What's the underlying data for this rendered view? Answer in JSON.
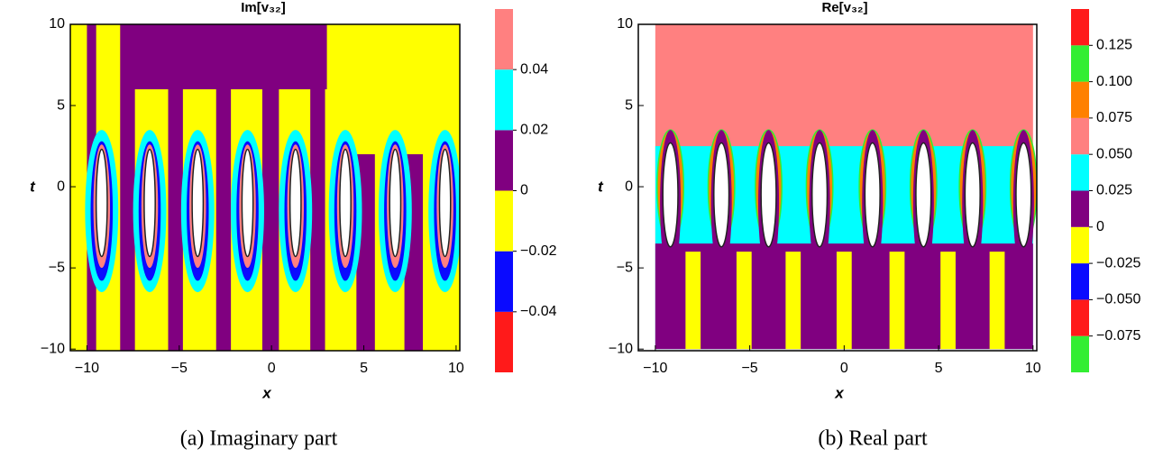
{
  "chart_data": [
    {
      "type": "contour",
      "title": "Im[v₃₂]",
      "caption": "(a)  Imaginary part",
      "xlabel": "x",
      "ylabel": "t",
      "xlim": [
        -10.9,
        10.2
      ],
      "ylim": [
        -10.1,
        10
      ],
      "xticks": [
        {
          "value": -10,
          "label": "−10"
        },
        {
          "value": -5,
          "label": "−5"
        },
        0,
        5,
        10
      ],
      "yticks": [
        {
          "value": -10,
          "label": "−10"
        },
        {
          "value": -5,
          "label": "−5"
        },
        0,
        5,
        10
      ],
      "levels": [
        -0.06,
        -0.04,
        -0.02,
        0,
        0.02,
        0.04,
        0.06
      ],
      "level_colors": [
        "#ff1a1a",
        "#0a0aff",
        "#ffff00",
        "#800080",
        "#00ffff",
        "#ff8080"
      ],
      "colorbar_ticks": [
        {
          "value": -0.04,
          "label": "−0.04"
        },
        {
          "value": -0.02,
          "label": "−0.02"
        },
        0,
        0.02,
        0.04
      ]
    },
    {
      "type": "contour",
      "title": "Re[v₃₂]",
      "caption": "(b)  Real part",
      "xlabel": "x",
      "ylabel": "t",
      "xlim": [
        -10.9,
        10.2
      ],
      "ylim": [
        -10.1,
        10
      ],
      "xticks": [
        {
          "value": -10,
          "label": "−10"
        },
        {
          "value": -5,
          "label": "−5"
        },
        0,
        5,
        10
      ],
      "yticks": [
        {
          "value": -10,
          "label": "−10"
        },
        {
          "value": -5,
          "label": "−5"
        },
        0,
        5,
        10
      ],
      "levels": [
        -0.1,
        -0.075,
        -0.05,
        -0.025,
        0,
        0.025,
        0.05,
        0.075,
        0.1,
        0.125,
        0.15
      ],
      "level_colors": [
        "#33ee33",
        "#ff1a1a",
        "#0a0aff",
        "#ffff00",
        "#800080",
        "#00ffff",
        "#ff8080",
        "#ff8000",
        "#33ee33",
        "#ff1a1a"
      ],
      "colorbar_ticks": [
        {
          "value": -0.075,
          "label": "−0.075"
        },
        {
          "value": -0.05,
          "label": "−0.050"
        },
        {
          "value": -0.025,
          "label": "−0.025"
        },
        0,
        0.025,
        {
          "value": 0.05,
          "label": "0.050"
        },
        0.075,
        {
          "value": 0.1,
          "label": "0.100"
        },
        0.125
      ]
    }
  ]
}
